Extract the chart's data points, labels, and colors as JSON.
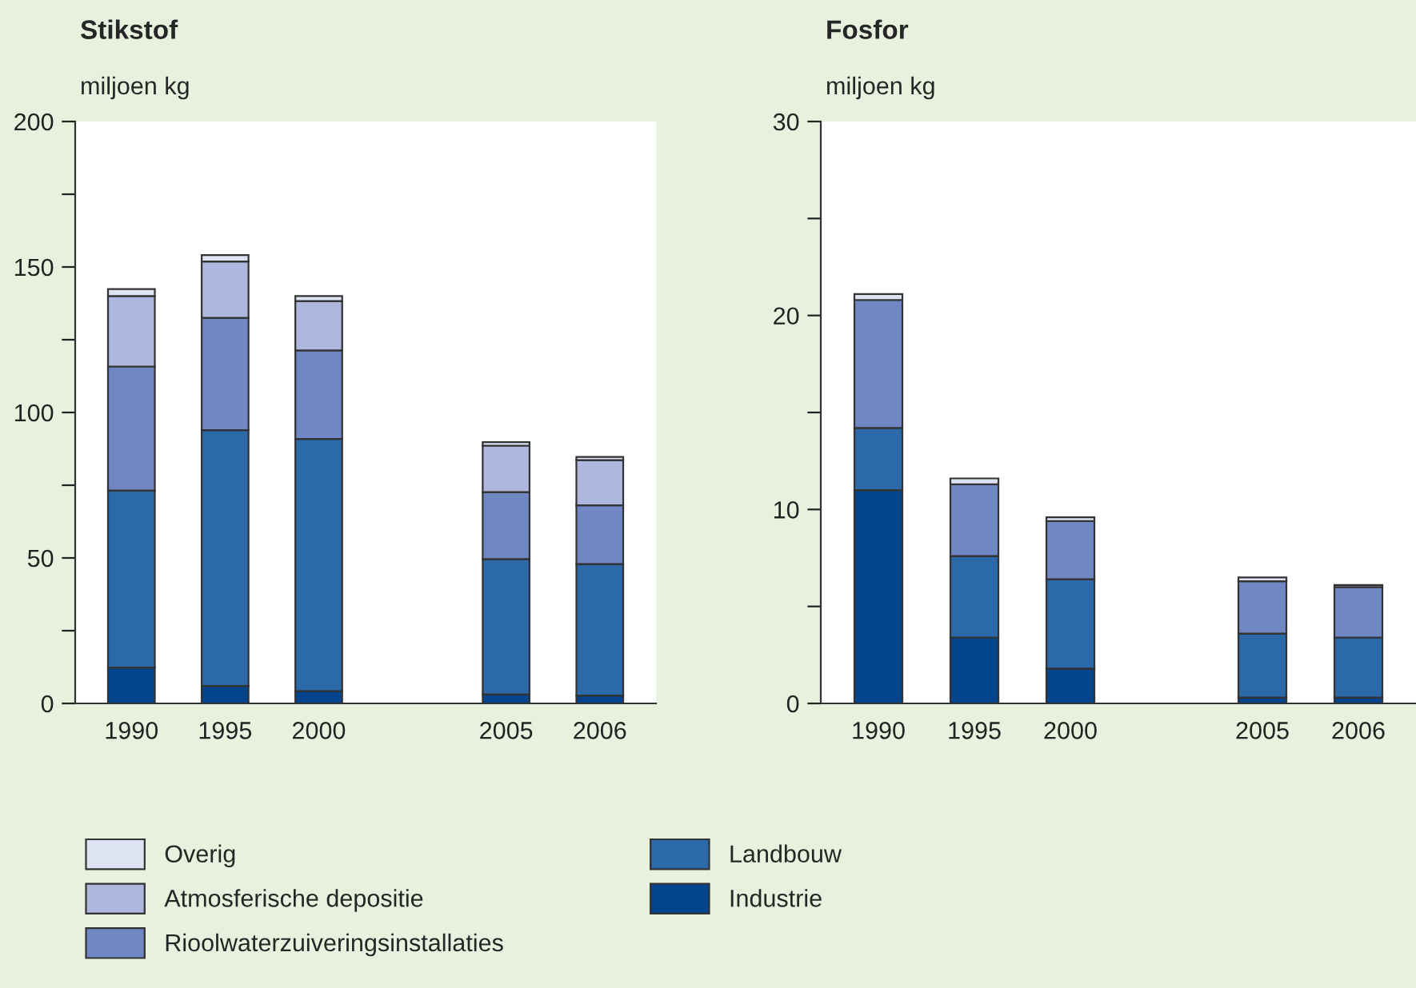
{
  "chart_data": [
    {
      "type": "bar",
      "title": "Stikstof",
      "ylabel": "miljoen kg",
      "stacked": true,
      "legend": "bottom",
      "grid": false,
      "categories": [
        "1990",
        "1995",
        "2000",
        null,
        "2005",
        "2006"
      ],
      "ylim": [
        0,
        200
      ],
      "yticks": [
        0,
        {
          "value": 25,
          "label": null
        },
        50,
        {
          "value": 75,
          "label": null
        },
        100,
        {
          "value": 125,
          "label": null
        },
        150,
        {
          "value": 175,
          "label": null
        },
        200
      ],
      "series": [
        {
          "name": "Industrie",
          "color": "#03458c",
          "values": [
            12.3,
            6.0,
            4.2,
            null,
            3.1,
            2.7
          ]
        },
        {
          "name": "Landbouw",
          "color": "#2c69a9",
          "values": [
            60.9,
            87.9,
            86.7,
            null,
            46.5,
            45.2
          ]
        },
        {
          "name": "Rioolwaterzuiveringsinstallaties",
          "color": "#6f88c3",
          "values": [
            42.6,
            38.6,
            30.4,
            null,
            23.0,
            20.2
          ]
        },
        {
          "name": "Atmosferische depositie",
          "color": "#aeb8de",
          "values": [
            24.2,
            19.4,
            17.0,
            null,
            16.0,
            15.5
          ]
        },
        {
          "name": "Overig",
          "color": "#dde3f2",
          "values": [
            2.4,
            2.2,
            1.7,
            null,
            1.2,
            1.1
          ]
        }
      ]
    },
    {
      "type": "bar",
      "title": "Fosfor",
      "ylabel": "miljoen kg",
      "stacked": true,
      "legend": false,
      "grid": false,
      "categories": [
        "1990",
        "1995",
        "2000",
        null,
        "2005",
        "2006"
      ],
      "ylim": [
        0,
        30
      ],
      "yticks": [
        0,
        {
          "value": 5,
          "label": null
        },
        10,
        {
          "value": 15,
          "label": null
        },
        20,
        {
          "value": 25,
          "label": null
        },
        30
      ],
      "series": [
        {
          "color": "#03458c",
          "values": [
            11.0,
            3.4,
            1.8,
            null,
            0.3,
            0.3
          ]
        },
        {
          "color": "#2c69a9",
          "values": [
            3.2,
            4.2,
            4.6,
            null,
            3.3,
            3.1
          ]
        },
        {
          "color": "#6f88c3",
          "values": [
            6.6,
            3.7,
            3.0,
            null,
            2.7,
            2.6
          ]
        },
        {
          "color": "#dde3f2",
          "values": [
            0.3,
            0.3,
            0.2,
            null,
            0.2,
            0.1
          ]
        }
      ]
    }
  ]
}
